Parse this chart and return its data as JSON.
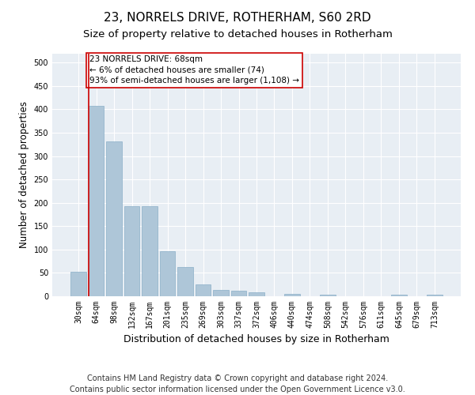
{
  "title": "23, NORRELS DRIVE, ROTHERHAM, S60 2RD",
  "subtitle": "Size of property relative to detached houses in Rotherham",
  "xlabel": "Distribution of detached houses by size in Rotherham",
  "ylabel": "Number of detached properties",
  "categories": [
    "30sqm",
    "64sqm",
    "98sqm",
    "132sqm",
    "167sqm",
    "201sqm",
    "235sqm",
    "269sqm",
    "303sqm",
    "337sqm",
    "372sqm",
    "406sqm",
    "440sqm",
    "474sqm",
    "508sqm",
    "542sqm",
    "576sqm",
    "611sqm",
    "645sqm",
    "679sqm",
    "713sqm"
  ],
  "values": [
    52,
    408,
    332,
    192,
    192,
    97,
    63,
    25,
    13,
    11,
    9,
    0,
    5,
    0,
    4,
    0,
    0,
    0,
    4,
    0,
    4
  ],
  "bar_color": "#aec6d8",
  "bar_edge_color": "#8aafc8",
  "vline_color": "#cc0000",
  "vline_bin_index": 1,
  "annotation_text": "23 NORRELS DRIVE: 68sqm\n← 6% of detached houses are smaller (74)\n93% of semi-detached houses are larger (1,108) →",
  "annotation_box_color": "#ffffff",
  "annotation_box_edge_color": "#cc0000",
  "ylim": [
    0,
    520
  ],
  "yticks": [
    0,
    50,
    100,
    150,
    200,
    250,
    300,
    350,
    400,
    450,
    500
  ],
  "background_color": "#e8eef4",
  "footer_line1": "Contains HM Land Registry data © Crown copyright and database right 2024.",
  "footer_line2": "Contains public sector information licensed under the Open Government Licence v3.0.",
  "title_fontsize": 11,
  "subtitle_fontsize": 9.5,
  "xlabel_fontsize": 9,
  "ylabel_fontsize": 8.5,
  "footer_fontsize": 7,
  "annotation_fontsize": 7.5,
  "tick_fontsize": 7
}
